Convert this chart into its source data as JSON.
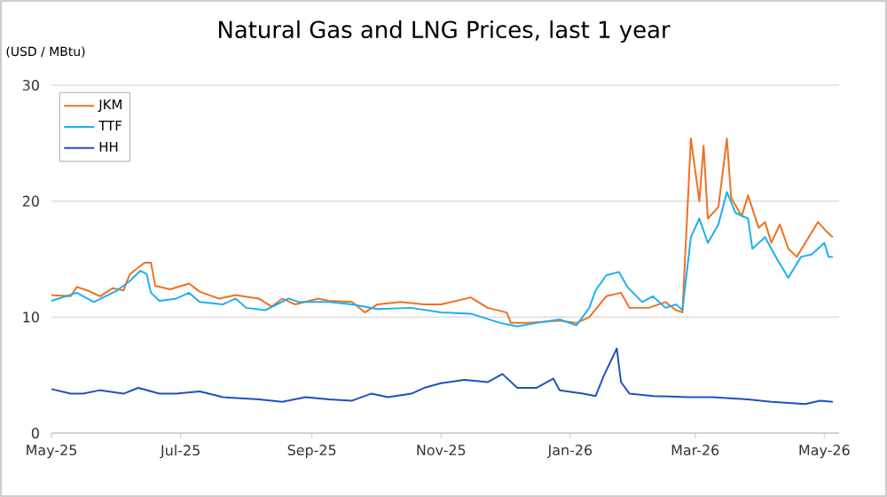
{
  "chart_data": {
    "type": "line",
    "title": "Natural Gas and LNG Prices, last 1 year",
    "ylabel": "(USD / MBtu)",
    "xlim": [
      "2025-05-01",
      "2026-05-08"
    ],
    "xticks": [
      {
        "value": "2025-05-01",
        "label": "May-25"
      },
      {
        "value": "2025-07-01",
        "label": "Jul-25"
      },
      {
        "value": "2025-09-01",
        "label": "Sep-25"
      },
      {
        "value": "2025-11-01",
        "label": "Nov-25"
      },
      {
        "value": "2026-01-01",
        "label": "Jan-26"
      },
      {
        "value": "2026-03-01",
        "label": "Mar-26"
      },
      {
        "value": "2026-05-01",
        "label": "May-26"
      }
    ],
    "ylim": [
      0,
      30
    ],
    "yticks": [
      0,
      10,
      20,
      30
    ],
    "grid": "y",
    "legend": "top left",
    "marker": "none",
    "line_style": "solid",
    "series": [
      {
        "name": "JKM",
        "color": "#f07020",
        "x": [
          "2025-05-01",
          "2025-05-10",
          "2025-05-13",
          "2025-05-18",
          "2025-05-24",
          "2025-05-30",
          "2025-06-04",
          "2025-06-07",
          "2025-06-14",
          "2025-06-17",
          "2025-06-19",
          "2025-06-26",
          "2025-07-05",
          "2025-07-10",
          "2025-07-19",
          "2025-07-27",
          "2025-08-07",
          "2025-08-13",
          "2025-08-18",
          "2025-08-24",
          "2025-09-04",
          "2025-09-09",
          "2025-09-20",
          "2025-09-26",
          "2025-10-02",
          "2025-10-13",
          "2025-10-24",
          "2025-11-01",
          "2025-11-15",
          "2025-11-23",
          "2025-12-02",
          "2025-12-04",
          "2025-12-13",
          "2025-12-27",
          "2026-01-04",
          "2026-01-10",
          "2026-01-18",
          "2026-01-25",
          "2026-01-29",
          "2026-02-07",
          "2026-02-15",
          "2026-02-20",
          "2026-02-23",
          "2026-02-27",
          "2026-03-03",
          "2026-03-05",
          "2026-03-07",
          "2026-03-12",
          "2026-03-16",
          "2026-03-18",
          "2026-03-23",
          "2026-03-26",
          "2026-03-31",
          "2026-04-03",
          "2026-04-06",
          "2026-04-10",
          "2026-04-14",
          "2026-04-18",
          "2026-04-22",
          "2026-04-28",
          "2026-05-02",
          "2026-05-05"
        ],
        "values": [
          11.9,
          11.8,
          12.6,
          12.3,
          11.8,
          12.5,
          12.3,
          13.7,
          14.7,
          14.7,
          12.7,
          12.4,
          12.9,
          12.2,
          11.6,
          11.9,
          11.6,
          10.9,
          11.6,
          11.1,
          11.6,
          11.4,
          11.3,
          10.4,
          11.1,
          11.3,
          11.1,
          11.1,
          11.7,
          10.8,
          10.4,
          9.5,
          9.5,
          9.7,
          9.5,
          10.0,
          11.8,
          12.1,
          10.8,
          10.8,
          11.3,
          10.6,
          10.4,
          25.4,
          20.0,
          24.8,
          18.5,
          19.5,
          25.4,
          20.3,
          18.7,
          20.5,
          17.7,
          18.2,
          16.4,
          18.0,
          15.9,
          15.2,
          16.4,
          18.2,
          17.4,
          16.9
        ]
      },
      {
        "name": "TTF",
        "color": "#1ab0f0",
        "x": [
          "2025-05-01",
          "2025-05-13",
          "2025-05-21",
          "2025-06-01",
          "2025-06-07",
          "2025-06-12",
          "2025-06-15",
          "2025-06-17",
          "2025-06-21",
          "2025-06-29",
          "2025-07-05",
          "2025-07-10",
          "2025-07-21",
          "2025-07-27",
          "2025-08-01",
          "2025-08-10",
          "2025-08-21",
          "2025-08-26",
          "2025-09-09",
          "2025-09-20",
          "2025-10-02",
          "2025-10-18",
          "2025-11-01",
          "2025-11-15",
          "2025-11-29",
          "2025-12-07",
          "2025-12-16",
          "2025-12-27",
          "2026-01-04",
          "2026-01-10",
          "2026-01-13",
          "2026-01-18",
          "2026-01-24",
          "2026-01-28",
          "2026-02-04",
          "2026-02-09",
          "2026-02-15",
          "2026-02-20",
          "2026-02-23",
          "2026-02-27",
          "2026-03-03",
          "2026-03-07",
          "2026-03-12",
          "2026-03-16",
          "2026-03-20",
          "2026-03-26",
          "2026-03-28",
          "2026-04-03",
          "2026-04-09",
          "2026-04-14",
          "2026-04-20",
          "2026-04-25",
          "2026-05-01",
          "2026-05-03",
          "2026-05-05"
        ],
        "values": [
          11.4,
          12.1,
          11.3,
          12.3,
          13.1,
          14.0,
          13.7,
          12.1,
          11.4,
          11.6,
          12.1,
          11.3,
          11.1,
          11.6,
          10.8,
          10.6,
          11.6,
          11.3,
          11.3,
          11.1,
          10.7,
          10.8,
          10.4,
          10.3,
          9.5,
          9.2,
          9.5,
          9.8,
          9.3,
          10.8,
          12.3,
          13.6,
          13.9,
          12.6,
          11.3,
          11.8,
          10.8,
          11.1,
          10.6,
          16.9,
          18.5,
          16.4,
          18.0,
          20.8,
          19.0,
          18.5,
          15.9,
          16.9,
          14.9,
          13.4,
          15.2,
          15.4,
          16.4,
          15.2,
          15.2
        ]
      },
      {
        "name": "HH",
        "color": "#2050c0",
        "x": [
          "2025-05-01",
          "2025-05-10",
          "2025-05-16",
          "2025-05-24",
          "2025-06-04",
          "2025-06-11",
          "2025-06-21",
          "2025-06-29",
          "2025-07-10",
          "2025-07-21",
          "2025-08-07",
          "2025-08-18",
          "2025-08-29",
          "2025-09-09",
          "2025-09-20",
          "2025-09-29",
          "2025-10-07",
          "2025-10-18",
          "2025-10-24",
          "2025-11-01",
          "2025-11-12",
          "2025-11-23",
          "2025-11-30",
          "2025-12-07",
          "2025-12-16",
          "2025-12-24",
          "2025-12-27",
          "2026-01-07",
          "2026-01-13",
          "2026-01-17",
          "2026-01-23",
          "2026-01-25",
          "2026-01-29",
          "2026-02-09",
          "2026-02-26",
          "2026-03-09",
          "2026-03-26",
          "2026-04-06",
          "2026-04-22",
          "2026-04-29",
          "2026-05-05"
        ],
        "values": [
          3.8,
          3.4,
          3.4,
          3.7,
          3.4,
          3.9,
          3.4,
          3.4,
          3.6,
          3.1,
          2.9,
          2.7,
          3.1,
          2.9,
          2.8,
          3.4,
          3.1,
          3.4,
          3.9,
          4.3,
          4.6,
          4.4,
          5.1,
          3.9,
          3.9,
          4.7,
          3.7,
          3.4,
          3.2,
          5.0,
          7.3,
          4.4,
          3.4,
          3.2,
          3.1,
          3.1,
          2.9,
          2.7,
          2.5,
          2.8,
          2.7
        ]
      }
    ]
  }
}
